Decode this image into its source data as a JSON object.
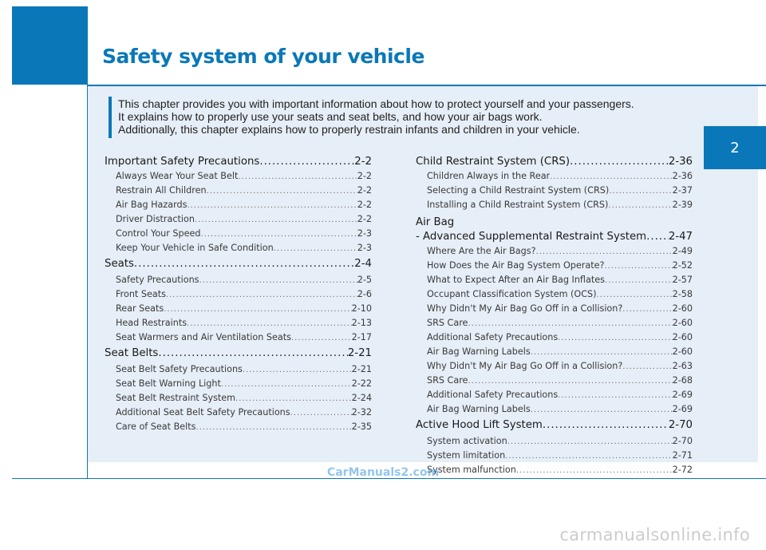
{
  "page": {
    "chapter_title": "Safety system of your vehicle",
    "chapter_number": "2",
    "colors": {
      "accent": "#0a78b8",
      "panel": "#e6eef7"
    }
  },
  "intro": {
    "line1": "This chapter provides you with important information about how to protect yourself and your passengers.",
    "line2": "It explains how to properly use your seats and seat belts, and how your air bags work.",
    "line3": "Additionally, this chapter explains how to properly restrain infants and children in your vehicle."
  },
  "toc_left": [
    {
      "title": "Important Safety Precautions",
      "page": "2-2",
      "items": [
        {
          "title": "Always Wear Your Seat Belt",
          "page": "2-2"
        },
        {
          "title": "Restrain All Children",
          "page": "2-2"
        },
        {
          "title": "Air Bag Hazards",
          "page": "2-2"
        },
        {
          "title": "Driver Distraction",
          "page": "2-2"
        },
        {
          "title": "Control Your Speed",
          "page": "2-3"
        },
        {
          "title": "Keep Your Vehicle in Safe Condition",
          "page": "2-3"
        }
      ]
    },
    {
      "title": "Seats",
      "page": "2-4",
      "items": [
        {
          "title": "Safety Precautions",
          "page": "2-5"
        },
        {
          "title": "Front Seats",
          "page": "2-6"
        },
        {
          "title": "Rear Seats",
          "page": "2-10"
        },
        {
          "title": "Head Restraints",
          "page": "2-13"
        },
        {
          "title": "Seat Warmers and Air Ventilation Seats",
          "page": "2-17"
        }
      ]
    },
    {
      "title": "Seat Belts",
      "page": "2-21",
      "items": [
        {
          "title": "Seat Belt Safety Precautions",
          "page": "2-21"
        },
        {
          "title": "Seat Belt Warning Light",
          "page": "2-22"
        },
        {
          "title": "Seat Belt Restraint System",
          "page": "2-24"
        },
        {
          "title": "Additional Seat Belt Safety Precautions",
          "page": "2-32"
        },
        {
          "title": "Care of Seat Belts",
          "page": "2-35"
        }
      ]
    }
  ],
  "toc_right": {
    "crs": {
      "title": "Child Restraint System (CRS)",
      "page": "2-36",
      "items": [
        {
          "title": "Children Always in the Rear",
          "page": "2-36"
        },
        {
          "title": "Selecting a Child Restraint System (CRS)",
          "page": "2-37"
        },
        {
          "title": "Installing a Child Restraint System (CRS)",
          "page": "2-39"
        }
      ]
    },
    "airbag": {
      "title_line1": "Air Bag",
      "title_line2": "- Advanced Supplemental Restraint System",
      "page": "2-47",
      "items": [
        {
          "title": "Where Are the Air Bags?",
          "page": "2-49"
        },
        {
          "title": "How Does the Air Bag System Operate?",
          "page": "2-52"
        },
        {
          "title": "What to Expect After an Air Bag Inflates",
          "page": "2-57"
        },
        {
          "title": "Occupant Classification System (OCS)",
          "page": "2-58"
        },
        {
          "title": "Why Didn't My Air Bag Go Off in a Collision?",
          "page": "2-60"
        },
        {
          "title": "SRS Care",
          "page": "2-60"
        },
        {
          "title": "Additional Safety Precautions",
          "page": "2-60"
        },
        {
          "title": "Air Bag Warning Labels",
          "page": "2-60"
        },
        {
          "title": "Why Didn't My Air Bag Go Off in a Collision?",
          "page": "2-63"
        },
        {
          "title": "SRS Care",
          "page": "2-68"
        },
        {
          "title": "Additional Safety Precautions",
          "page": "2-69"
        },
        {
          "title": "Air Bag Warning Labels",
          "page": "2-69"
        }
      ]
    },
    "hood": {
      "title": "Active Hood Lift System",
      "page": "2-70",
      "items": [
        {
          "title": "System activation",
          "page": "2-70"
        },
        {
          "title": "System limitation",
          "page": "2-71"
        },
        {
          "title": "System malfunction",
          "page": "2-72"
        }
      ]
    }
  },
  "watermarks": {
    "carmanuals2": "CarManuals2.com",
    "carmanualsonline": "carmanualsonline.info"
  }
}
